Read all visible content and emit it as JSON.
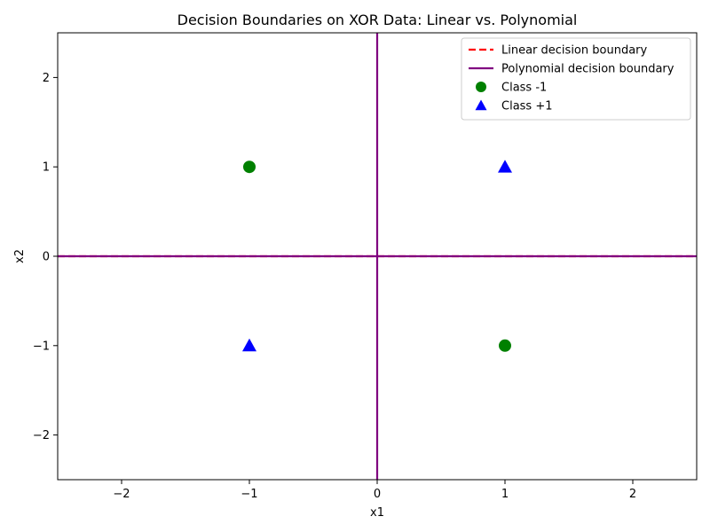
{
  "chart_data": {
    "type": "scatter",
    "title": "Decision Boundaries on XOR Data: Linear vs. Polynomial",
    "xlabel": "x1",
    "ylabel": "x2",
    "xlim": [
      -2.5,
      2.5
    ],
    "ylim": [
      -2.5,
      2.5
    ],
    "xticks": [
      -2,
      -1,
      0,
      1,
      2
    ],
    "yticks": [
      -2,
      -1,
      0,
      1,
      2
    ],
    "grid": false,
    "legend_position": "top-right",
    "series": [
      {
        "name": "Linear decision boundary",
        "kind": "line",
        "style": "dashed",
        "color": "#ff0000",
        "segments": [
          {
            "x": [
              -2.5,
              2.5
            ],
            "y": [
              0,
              0
            ]
          }
        ]
      },
      {
        "name": "Polynomial decision boundary",
        "kind": "line",
        "style": "solid",
        "color": "#800080",
        "segments": [
          {
            "x": [
              -2.5,
              2.5
            ],
            "y": [
              0,
              0
            ]
          },
          {
            "x": [
              0,
              0
            ],
            "y": [
              -2.5,
              2.5
            ]
          }
        ]
      },
      {
        "name": "Class -1",
        "kind": "scatter",
        "marker": "circle",
        "color": "#008000",
        "points": [
          {
            "x": -1,
            "y": 1
          },
          {
            "x": 1,
            "y": -1
          }
        ]
      },
      {
        "name": "Class +1",
        "kind": "scatter",
        "marker": "triangle",
        "color": "#0000ff",
        "points": [
          {
            "x": 1,
            "y": 1
          },
          {
            "x": -1,
            "y": -1
          }
        ]
      }
    ]
  }
}
